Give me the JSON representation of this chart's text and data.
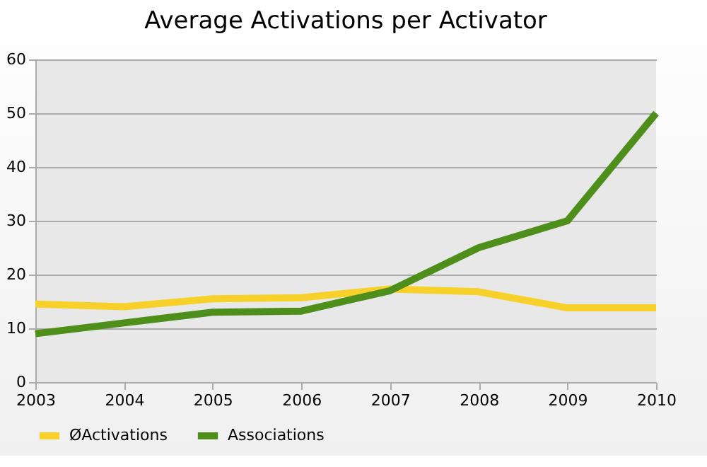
{
  "chart_data": {
    "type": "line",
    "title": "Average Activations per Activator",
    "x": [
      2003,
      2004,
      2005,
      2006,
      2007,
      2008,
      2009,
      2010
    ],
    "series": [
      {
        "name": "ØActivations",
        "color": "#f7d12a",
        "values": [
          14.5,
          14,
          15.5,
          15.7,
          17.3,
          16.8,
          13.8,
          13.8
        ]
      },
      {
        "name": "Associations",
        "color": "#4e8f1c",
        "values": [
          9,
          11,
          13,
          13.2,
          17,
          25,
          30,
          50
        ]
      }
    ],
    "xlim": [
      2003,
      2010
    ],
    "xticks": [
      2003,
      2004,
      2005,
      2006,
      2007,
      2008,
      2009,
      2010
    ],
    "ylim": [
      0,
      60
    ],
    "yticks": [
      0,
      10,
      20,
      30,
      40,
      50,
      60
    ],
    "grid": "y",
    "legend": "bottom",
    "line_style": "solid",
    "marker": "none"
  }
}
